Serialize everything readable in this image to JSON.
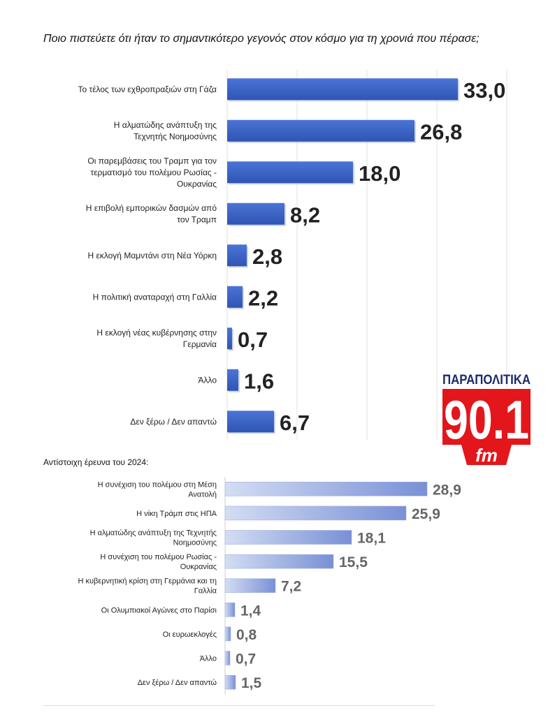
{
  "title": "Ποιο πιστεύετε ότι ήταν το σημαντικότερο γεγονός στον κόσμο για τη χρονιά που πέρασε;",
  "subtitle": "Αντίστοιχη έρευνα του 2024:",
  "logo": {
    "top_text": "ΠΑΡΑΠΟΛΙΤΙΚΑ",
    "number": "90.1",
    "suffix": "fm"
  },
  "colors": {
    "bar_2025": "#3f68cc",
    "bar_2025_dark": "#2e52ad",
    "bar_2024_light": "#c9d5f0",
    "bar_2024_dark": "#7f97d8",
    "value_2025": "#222222",
    "value_2024": "#666666",
    "logo_red": "#e3161b",
    "logo_navy": "#1a2a6c"
  },
  "chart_data": [
    {
      "type": "bar",
      "orientation": "horizontal",
      "title": "Ποιο πιστεύετε ότι ήταν το σημαντικότερο γεγονός στον κόσμο για τη χρονιά που πέρασε;",
      "categories": [
        "Το τέλος των εχθροπραξιών στη Γάζα",
        "Η αλματώδης ανάπτυξη της Τεχνητής Νοημοσύνης",
        "Οι παρεμβάσεις του Τραμπ  για τον τερματισμό του πολέμου Ρωσίας - Ουκρανίας",
        "Η επιβολή εμπορικών δασμών από τον Τραμπ",
        "Η εκλογή Μαμντάνι στη Νέα Υόρκη",
        "Η πολιτική αναταραχή στη Γαλλία",
        "Η εκλογή νέας κυβέρνησης στην Γερμανία",
        "Άλλο",
        "Δεν ξέρω / Δεν απαντώ"
      ],
      "label_lines": [
        [
          "Το τέλος των εχθροπραξιών στη Γάζα"
        ],
        [
          "Η αλματώδης ανάπτυξη της",
          "Τεχνητής Νοημοσύνης"
        ],
        [
          "Οι παρεμβάσεις του Τραμπ  για τον",
          "τερματισμό του πολέμου Ρωσίας -",
          "Ουκρανίας"
        ],
        [
          "Η επιβολή εμπορικών δασμών από",
          "τον Τραμπ"
        ],
        [
          "Η εκλογή Μαμντάνι στη Νέα Υόρκη"
        ],
        [
          "Η πολιτική αναταραχή στη Γαλλία"
        ],
        [
          "Η εκλογή νέας κυβέρνησης στην",
          "Γερμανία"
        ],
        [
          "Άλλο"
        ],
        [
          "Δεν ξέρω / Δεν απαντώ"
        ]
      ],
      "values": [
        33.0,
        26.8,
        18.0,
        8.2,
        2.8,
        2.2,
        0.7,
        1.6,
        6.7
      ],
      "value_labels": [
        "33,0",
        "26,8",
        "18,0",
        "8,2",
        "2,8",
        "2,2",
        "0,7",
        "1,6",
        "6,7"
      ],
      "xlim": [
        0,
        40
      ],
      "grid": true
    },
    {
      "type": "bar",
      "orientation": "horizontal",
      "title": "Αντίστοιχη έρευνα του 2024:",
      "categories": [
        "Η συνέχιση του πολέμου στη Μέση Ανατολή",
        "Η νίκη Τράμπ στις ΗΠΑ",
        "Η αλματώδης ανάπτυξη της Τεχνητής Νοημοσύνης",
        "Η συνέχιση του πολέμου Ρωσίας - Ουκρανίας",
        "Η κυβερνητική κρίση στη Γερμάνια και τη Γαλλία",
        "Οι Ολυμπιακοί Αγώνες στο Παρίσι",
        "Οι ευρωεκλογές",
        "Άλλο",
        "Δεν ξέρω / Δεν απαντώ"
      ],
      "label_lines": [
        [
          "Η συνέχιση του πολέμου στη Μέση",
          "Ανατολή"
        ],
        [
          "Η νίκη Τράμπ στις ΗΠΑ"
        ],
        [
          "Η αλματώδης ανάπτυξη της Τεχνητής",
          "Νοημοσύνης"
        ],
        [
          "Η συνέχιση του πολέμου Ρωσίας -",
          "Ουκρανίας"
        ],
        [
          "Η κυβερνητική κρίση στη Γερμάνια και τη",
          "Γαλλία"
        ],
        [
          "Οι Ολυμπιακοί Αγώνες στο Παρίσι"
        ],
        [
          "Οι ευρωεκλογές"
        ],
        [
          "Άλλο"
        ],
        [
          "Δεν ξέρω / Δεν απαντώ"
        ]
      ],
      "values": [
        28.9,
        25.9,
        18.1,
        15.5,
        7.2,
        1.4,
        0.8,
        0.7,
        1.5
      ],
      "value_labels": [
        "28,9",
        "25,9",
        "18,1",
        "15,5",
        "7,2",
        "1,4",
        "0,8",
        "0,7",
        "1,5"
      ],
      "xlim": [
        0,
        30
      ],
      "grid": false
    }
  ]
}
